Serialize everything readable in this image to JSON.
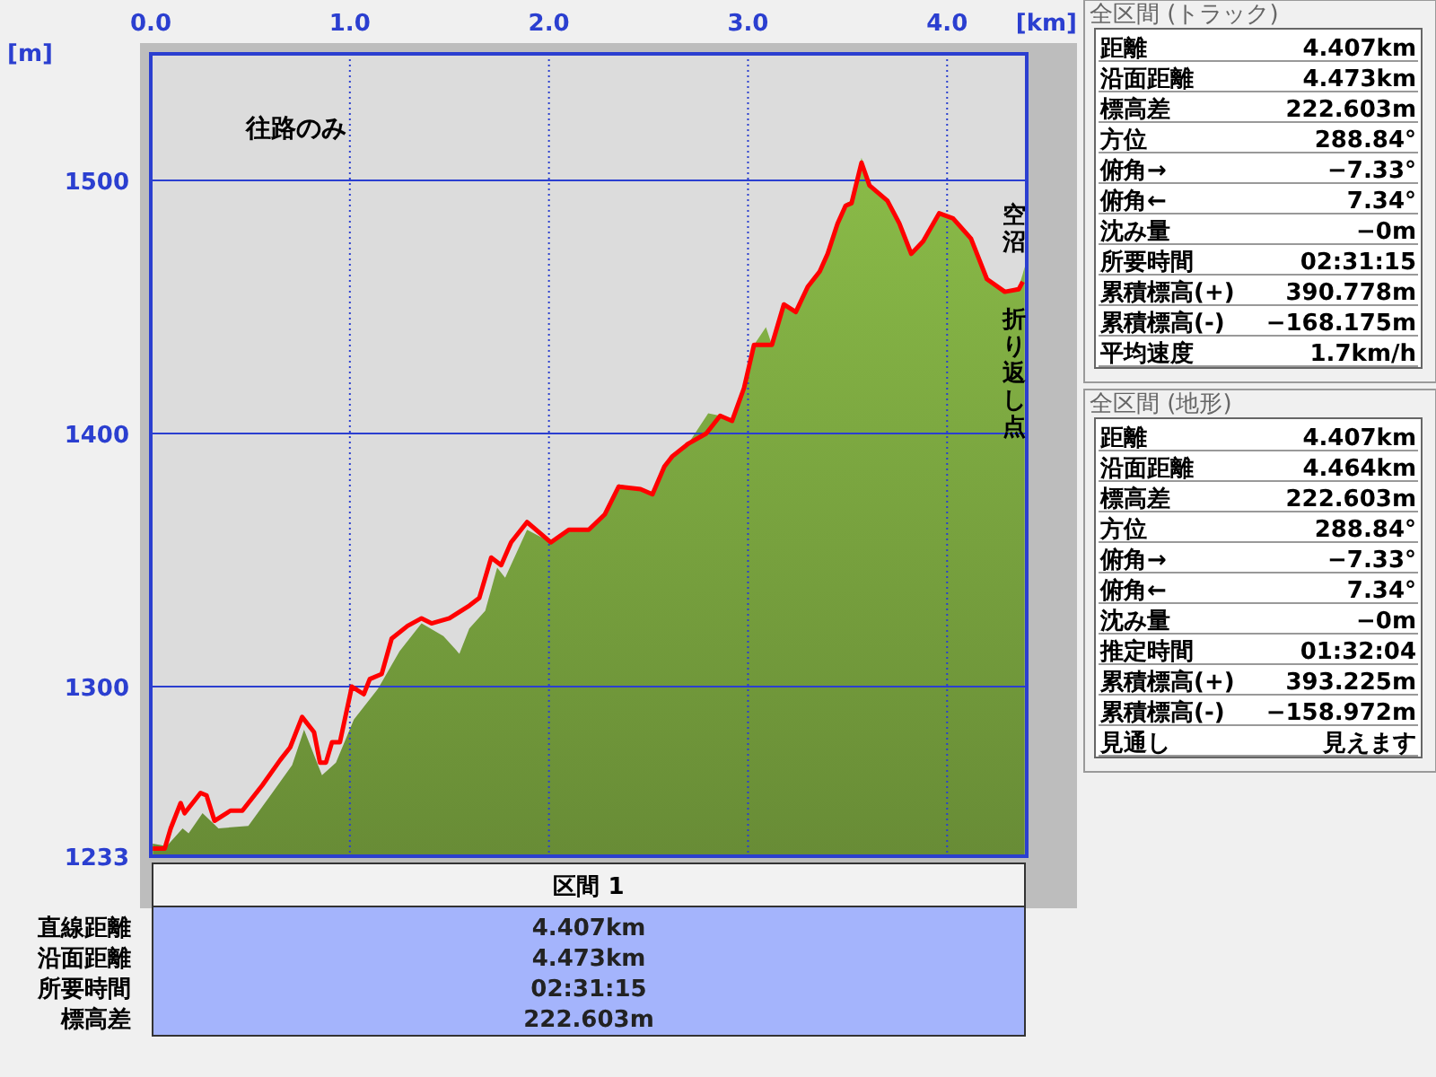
{
  "chart_data": [
    {
      "type": "area",
      "xlabel": "[km]",
      "ylabel": "[m]",
      "xlim": [
        0,
        4.4
      ],
      "xticks": [
        {
          "value": 0,
          "label": "0.0"
        },
        {
          "value": 1,
          "label": "1.0"
        },
        {
          "value": 2,
          "label": "2.0"
        },
        {
          "value": 3,
          "label": "3.0"
        },
        {
          "value": 4,
          "label": "4.0"
        }
      ],
      "ylim": [
        1233,
        1550
      ],
      "yticks": [
        1233,
        1300,
        1400,
        1500
      ],
      "grid": true,
      "annotations": [
        "往路のみ",
        "空沼",
        "折り返し点"
      ],
      "series": [
        {
          "type": "area",
          "color": "#78a23e",
          "x": [
            0.01,
            0.08,
            0.16,
            0.19,
            0.26,
            0.34,
            0.49,
            0.61,
            0.71,
            0.77,
            0.86,
            0.93,
            1.02,
            1.14,
            1.25,
            1.36,
            1.47,
            1.55,
            1.6,
            1.68,
            1.74,
            1.78,
            1.89,
            2.01,
            2.1,
            2.2,
            2.28,
            2.35,
            2.46,
            2.52,
            2.58,
            2.62,
            2.7,
            2.8,
            2.86,
            2.92,
            2.98,
            3.03,
            3.09,
            3.12,
            3.18,
            3.24,
            3.3,
            3.36,
            3.4,
            3.45,
            3.49,
            3.52,
            3.57,
            3.61,
            3.7,
            3.76,
            3.82,
            3.88,
            3.96,
            4.03,
            4.12,
            4.2,
            4.29,
            4.36,
            4.38,
            4.39
          ],
          "values": [
            1238,
            1237,
            1244,
            1242,
            1250,
            1244,
            1245,
            1258,
            1269,
            1283,
            1265,
            1270,
            1287,
            1299,
            1314,
            1325,
            1320,
            1313,
            1323,
            1330,
            1347,
            1343,
            1362,
            1357,
            1362,
            1362,
            1368,
            1380,
            1378,
            1376,
            1387,
            1391,
            1396,
            1408,
            1407,
            1405,
            1418,
            1435,
            1442,
            1435,
            1452,
            1448,
            1458,
            1464,
            1471,
            1483,
            1491,
            1492,
            1509,
            1499,
            1492,
            1483,
            1471,
            1476,
            1487,
            1485,
            1477,
            1461,
            1456,
            1458,
            1463,
            1466
          ]
        },
        {
          "type": "line",
          "color": "#ff0000",
          "x": [
            0.01,
            0.07,
            0.1,
            0.15,
            0.17,
            0.25,
            0.28,
            0.32,
            0.4,
            0.46,
            0.56,
            0.65,
            0.7,
            0.76,
            0.82,
            0.85,
            0.88,
            0.91,
            0.95,
            1.01,
            1.07,
            1.1,
            1.16,
            1.21,
            1.29,
            1.36,
            1.41,
            1.5,
            1.6,
            1.65,
            1.71,
            1.76,
            1.81,
            1.89,
            2.01,
            2.1,
            2.2,
            2.28,
            2.35,
            2.46,
            2.52,
            2.58,
            2.62,
            2.7,
            2.79,
            2.86,
            2.92,
            2.98,
            3.03,
            3.12,
            3.18,
            3.24,
            3.3,
            3.36,
            3.4,
            3.45,
            3.49,
            3.52,
            3.57,
            3.61,
            3.7,
            3.76,
            3.82,
            3.88,
            3.96,
            4.03,
            4.12,
            4.2,
            4.29,
            4.36,
            4.38
          ],
          "values": [
            1236,
            1236,
            1244,
            1254,
            1250,
            1258,
            1257,
            1247,
            1251,
            1251,
            1261,
            1271,
            1276,
            1288,
            1282,
            1270,
            1270,
            1278,
            1278,
            1300,
            1297,
            1303,
            1305,
            1319,
            1324,
            1327,
            1325,
            1327,
            1332,
            1335,
            1351,
            1348,
            1357,
            1365,
            1357,
            1362,
            1362,
            1368,
            1379,
            1378,
            1376,
            1387,
            1391,
            1396,
            1400,
            1407,
            1405,
            1418,
            1435,
            1435,
            1451,
            1448,
            1458,
            1464,
            1471,
            1483,
            1490,
            1491,
            1507,
            1498,
            1492,
            1483,
            1471,
            1476,
            1487,
            1485,
            1477,
            1461,
            1456,
            1457,
            1460
          ]
        }
      ]
    },
    {
      "type": "other",
      "title": "全区間 (トラック)",
      "categories": [
        "距離",
        "沿面距離",
        "標高差",
        "方位",
        "俯角→",
        "俯角←",
        "沈み量",
        "所要時間",
        "累積標高(+)",
        "累積標高(-)",
        "平均速度"
      ],
      "value_labels": [
        "4.407km",
        "4.473km",
        "222.603m",
        "288.84°",
        "−7.33°",
        "7.34°",
        "−0m",
        "02:31:15",
        "390.778m",
        "−168.175m",
        "1.7km/h"
      ]
    },
    {
      "type": "other",
      "title": "全区間 (地形)",
      "categories": [
        "距離",
        "沿面距離",
        "標高差",
        "方位",
        "俯角→",
        "俯角←",
        "沈み量",
        "推定時間",
        "累積標高(+)",
        "累積標高(-)",
        "見通し"
      ],
      "value_labels": [
        "4.407km",
        "4.464km",
        "222.603m",
        "288.84°",
        "−7.33°",
        "7.34°",
        "−0m",
        "01:32:04",
        "393.225m",
        "−158.972m",
        "見えます"
      ]
    },
    {
      "type": "other",
      "title": "区間 1",
      "categories": [
        "直線距離",
        "沿面距離",
        "所要時間",
        "標高差"
      ],
      "value_labels": [
        "4.407km",
        "4.473km",
        "02:31:15",
        "222.603m"
      ]
    }
  ]
}
